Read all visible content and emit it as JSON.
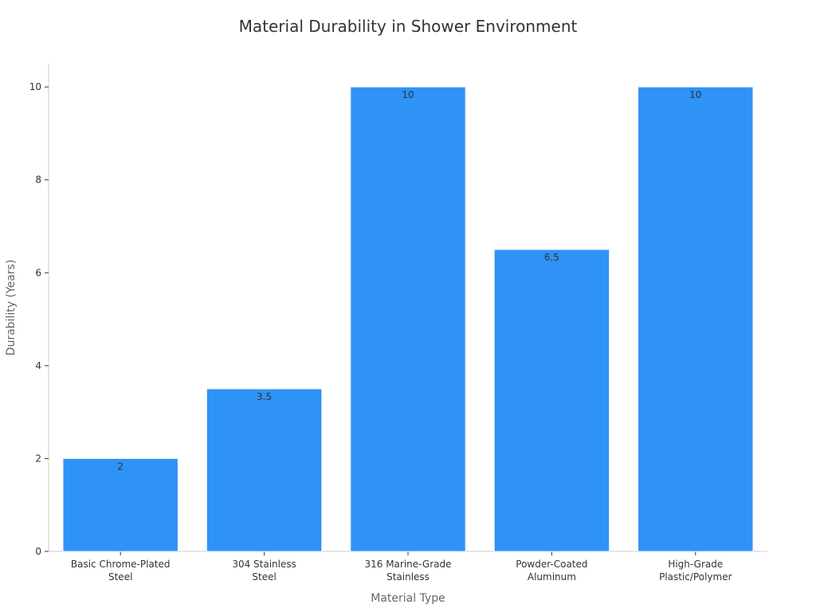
{
  "chart_data": {
    "type": "bar",
    "title": "Material Durability in Shower Environment",
    "xlabel": "Material Type",
    "ylabel": "Durability (Years)",
    "categories": [
      [
        "Basic Chrome-Plated",
        "Steel"
      ],
      [
        "304 Stainless",
        "Steel"
      ],
      [
        "316 Marine-Grade",
        "Stainless"
      ],
      [
        "Powder-Coated",
        "Aluminum"
      ],
      [
        "High-Grade",
        "Plastic/Polymer"
      ]
    ],
    "values": [
      2,
      3.5,
      10,
      6.5,
      10
    ],
    "value_labels": [
      "2",
      "3.5",
      "10",
      "6.5",
      "10"
    ],
    "ylim": [
      0,
      10.5
    ],
    "yticks": [
      0,
      2,
      4,
      6,
      8,
      10
    ],
    "grid": false,
    "colors": {
      "bar": "#2f92f7",
      "bar_stroke": "#e6f0fb",
      "axis": "#cccccc",
      "tick_text": "#333333",
      "axis_label": "#666666",
      "title": "#333333"
    }
  }
}
